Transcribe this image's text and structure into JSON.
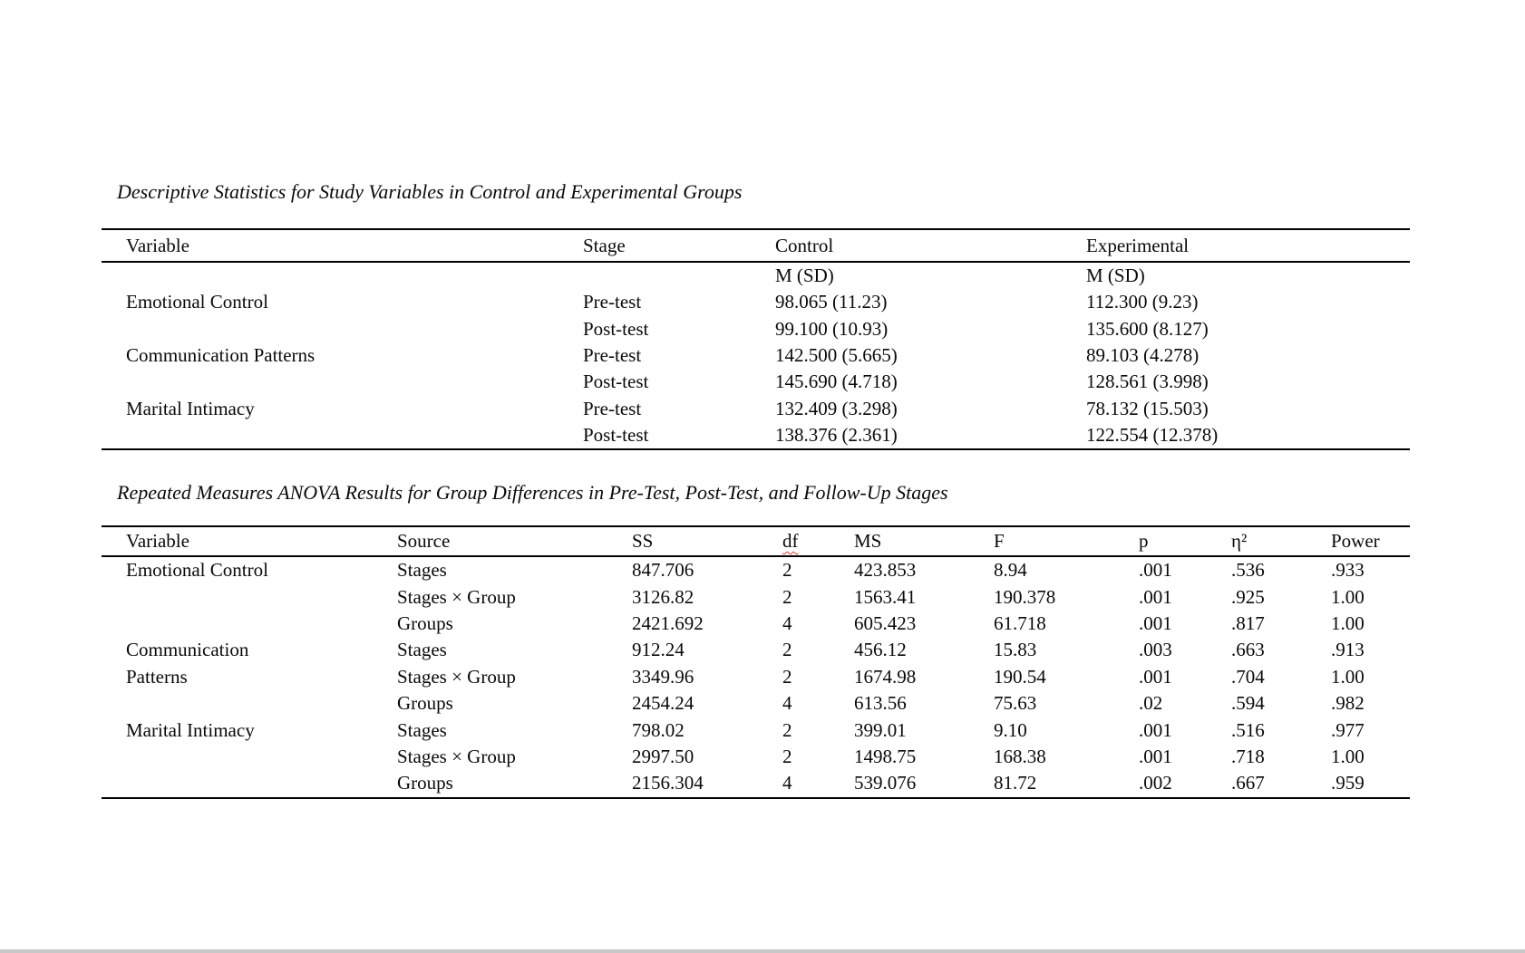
{
  "page": {
    "background_color": "#ffffff",
    "rule_color": "#000000",
    "spellcheck_squiggle_color": "#e0392f",
    "page_edge_color": "#c8c8c8"
  },
  "table1": {
    "title": "Descriptive Statistics for Study Variables in Control and Experimental Groups",
    "columns": [
      "Variable",
      "Stage",
      "Control",
      "Experimental"
    ],
    "subheader": [
      "",
      "",
      "M (SD)",
      "M (SD)"
    ],
    "rows": [
      [
        "Emotional Control",
        "Pre-test",
        "98.065 (11.23)",
        "112.300 (9.23)"
      ],
      [
        "",
        "Post-test",
        "99.100 (10.93)",
        "135.600 (8.127)"
      ],
      [
        "Communication Patterns",
        "Pre-test",
        "142.500 (5.665)",
        "89.103 (4.278)"
      ],
      [
        "",
        "Post-test",
        "145.690 (4.718)",
        "128.561 (3.998)"
      ],
      [
        "Marital Intimacy",
        "Pre-test",
        "132.409 (3.298)",
        "78.132 (15.503)"
      ],
      [
        "",
        "Post-test",
        "138.376 (2.361)",
        "122.554 (12.378)"
      ]
    ]
  },
  "table2": {
    "title": "Repeated Measures ANOVA Results for Group Differences in Pre-Test, Post-Test, and Follow-Up Stages",
    "columns": [
      "Variable",
      "Source",
      "SS",
      "df",
      "MS",
      "F",
      "p",
      "η²",
      "Power"
    ],
    "df_has_spellcheck_squiggle": true,
    "rows": [
      [
        "Emotional Control",
        "Stages",
        "847.706",
        "2",
        "423.853",
        "8.94",
        ".001",
        ".536",
        ".933"
      ],
      [
        "",
        "Stages × Group",
        "3126.82",
        "2",
        "1563.41",
        "190.378",
        ".001",
        ".925",
        "1.00"
      ],
      [
        "",
        "Groups",
        "2421.692",
        "4",
        "605.423",
        "61.718",
        ".001",
        ".817",
        "1.00"
      ],
      [
        "Communication",
        "Stages",
        "912.24",
        "2",
        "456.12",
        "15.83",
        ".003",
        ".663",
        ".913"
      ],
      [
        "Patterns",
        "Stages × Group",
        "3349.96",
        "2",
        "1674.98",
        "190.54",
        ".001",
        ".704",
        "1.00"
      ],
      [
        "",
        "Groups",
        "2454.24",
        "4",
        "613.56",
        "75.63",
        ".02",
        ".594",
        ".982"
      ],
      [
        "Marital Intimacy",
        "Stages",
        "798.02",
        "2",
        "399.01",
        "9.10",
        ".001",
        ".516",
        ".977"
      ],
      [
        "",
        "Stages × Group",
        "2997.50",
        "2",
        "1498.75",
        "168.38",
        ".001",
        ".718",
        "1.00"
      ],
      [
        "",
        "Groups",
        "2156.304",
        "4",
        "539.076",
        "81.72",
        ".002",
        ".667",
        ".959"
      ]
    ]
  }
}
